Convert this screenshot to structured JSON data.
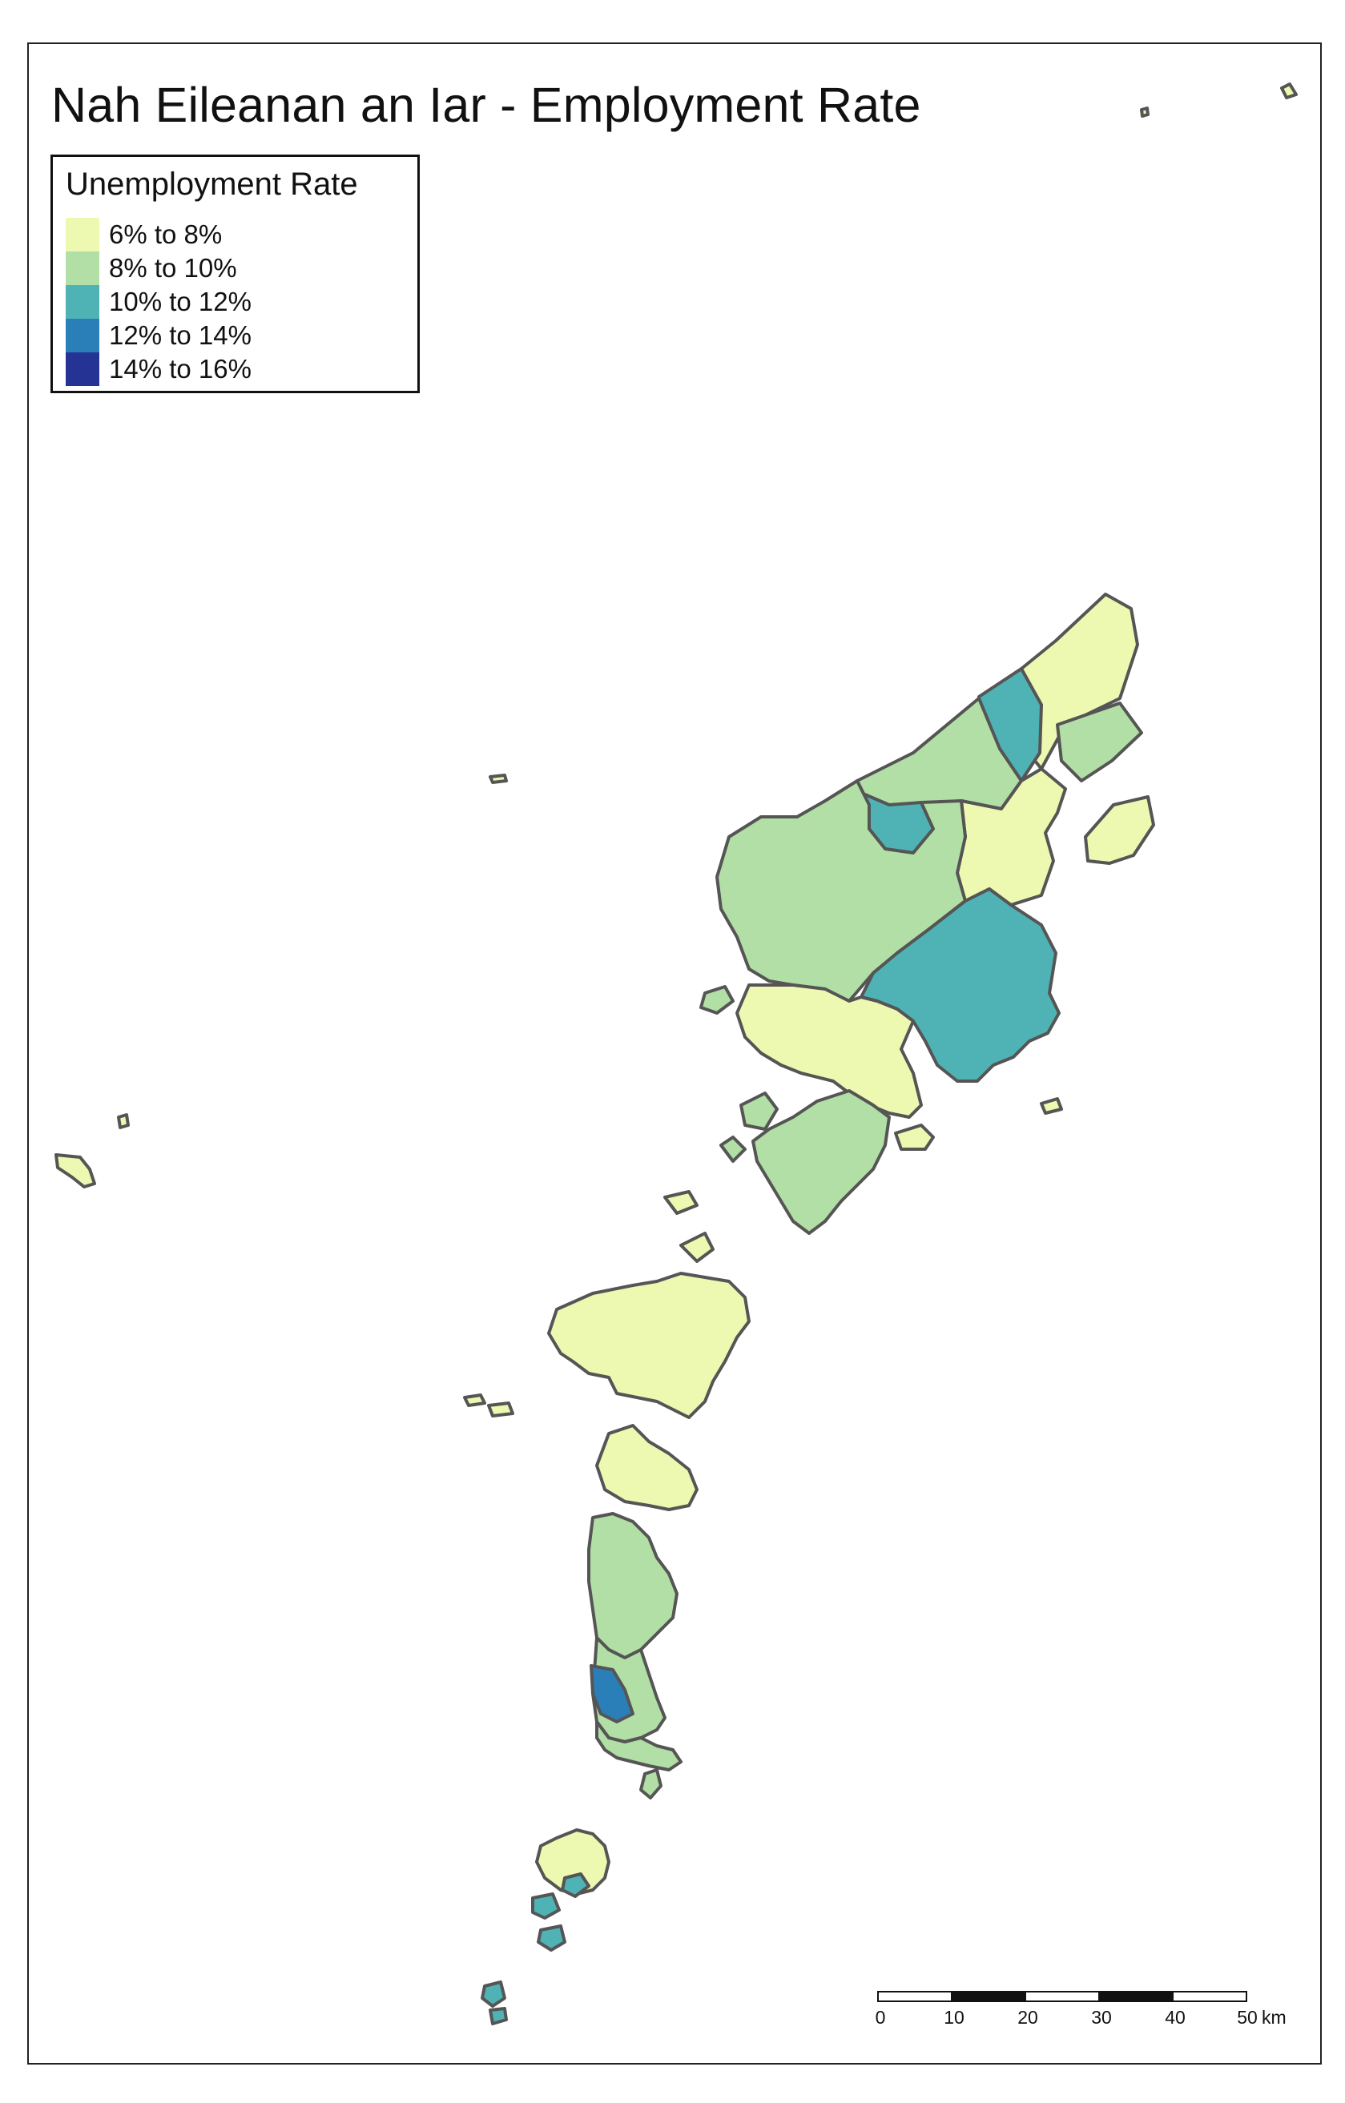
{
  "map": {
    "title": "Nah Eileanan an Iar - Employment Rate",
    "legend_title": "Unemployment Rate",
    "legend": [
      {
        "label": "6% to 8%",
        "color": "#edf8b1"
      },
      {
        "label": "8% to 10%",
        "color": "#b2dfa6"
      },
      {
        "label": "10% to 12%",
        "color": "#4fb3b5"
      },
      {
        "label": "12% to 14%",
        "color": "#2a7fb8"
      },
      {
        "label": "14% to 16%",
        "color": "#253494"
      }
    ],
    "outline_color": "#555555",
    "scale_bar": {
      "ticks": [
        "0",
        "10",
        "20",
        "30",
        "40",
        "50"
      ],
      "unit": "km"
    }
  }
}
